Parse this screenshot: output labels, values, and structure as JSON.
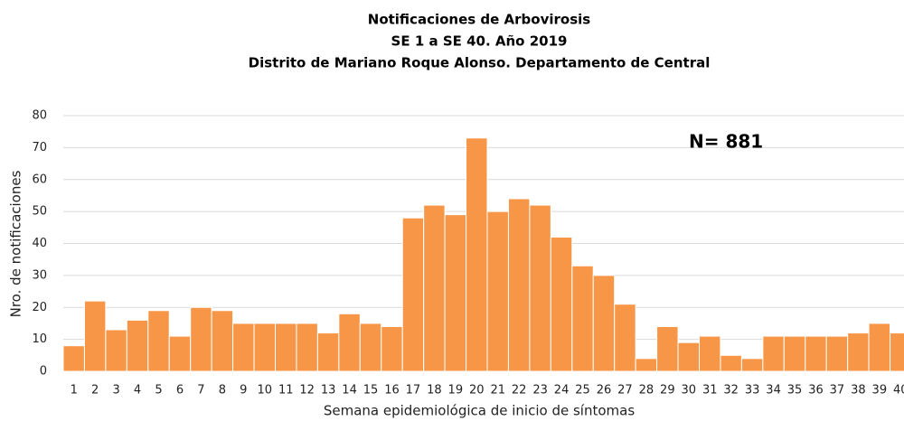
{
  "chart_data": {
    "type": "bar",
    "title": [
      "Notificaciones de Arbovirosis",
      "SE 1 a SE 40. Año 2019",
      "Distrito de Mariano Roque Alonso. Departamento de Central"
    ],
    "annotation": "N= 881",
    "x_label": "Semana epidemiológica de inicio de síntomas",
    "y_label": "Nro. de notificaciones",
    "categories": [
      "1",
      "2",
      "3",
      "4",
      "5",
      "6",
      "7",
      "8",
      "9",
      "10",
      "11",
      "12",
      "13",
      "14",
      "15",
      "16",
      "17",
      "18",
      "19",
      "20",
      "21",
      "22",
      "23",
      "24",
      "25",
      "26",
      "27",
      "28",
      "29",
      "30",
      "31",
      "32",
      "33",
      "34",
      "35",
      "36",
      "37",
      "38",
      "39",
      "40"
    ],
    "values": [
      8,
      22,
      13,
      16,
      19,
      11,
      20,
      19,
      15,
      15,
      15,
      15,
      12,
      18,
      15,
      14,
      48,
      52,
      49,
      73,
      50,
      54,
      52,
      42,
      33,
      30,
      21,
      4,
      14,
      9,
      11,
      5,
      4,
      11,
      11,
      11,
      11,
      12,
      15,
      12
    ],
    "color": "#f79646",
    "ylim": [
      0,
      80
    ],
    "yticks": [
      0,
      10,
      20,
      30,
      40,
      50,
      60,
      70,
      80
    ],
    "grid": true
  }
}
